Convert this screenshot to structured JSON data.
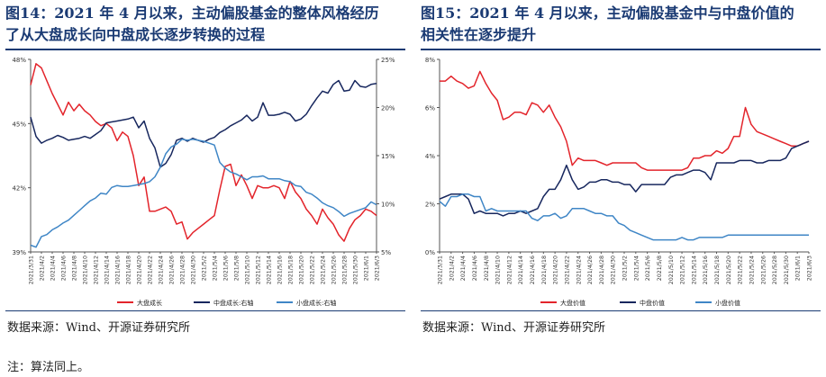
{
  "left": {
    "title_line1": "图14：2021 年 4 月以来，主动偏股基金的整体风格经历",
    "title_line2": "了从大盘成长向中盘成长逐步转换的过程",
    "source": "数据来源：Wind、开源证券研究所"
  },
  "right": {
    "title_line1": "图15：2021 年 4 月以来，主动偏股基金中与中盘价值的",
    "title_line2": "相关性在逐步提升",
    "source": "数据来源：Wind、开源证券研究所"
  },
  "note": "注：算法同上。",
  "colors": {
    "red": "#e3242b",
    "navy": "#17275e",
    "blue": "#3f86c6",
    "title": "#1a3a73"
  },
  "chart_data": [
    {
      "type": "line",
      "x_tick_labels": [
        "2021/3/31",
        "2021/4/2",
        "2021/4/4",
        "2021/4/6",
        "2021/4/8",
        "2021/4/10",
        "2021/4/12",
        "2021/4/14",
        "2021/4/16",
        "2021/4/18",
        "2021/4/20",
        "2021/4/22",
        "2021/4/24",
        "2021/4/26",
        "2021/4/28",
        "2021/4/30",
        "2021/5/2",
        "2021/5/4",
        "2021/5/6",
        "2021/5/8",
        "2021/5/10",
        "2021/5/12",
        "2021/5/14",
        "2021/5/16",
        "2021/5/18",
        "2021/5/20",
        "2021/5/22",
        "2021/5/24",
        "2021/5/26",
        "2021/5/28",
        "2021/5/30",
        "2021/6/1",
        "2021/6/3"
      ],
      "x_range": [
        0,
        64
      ],
      "left_axis": {
        "ticks": [
          "39%",
          "42%",
          "45%",
          "48%"
        ],
        "range": [
          39,
          48
        ]
      },
      "right_axis": {
        "ticks": [
          "5%",
          "10%",
          "15%",
          "20%",
          "25%"
        ],
        "range": [
          5,
          25
        ]
      },
      "legend": [
        "大盘成长",
        "中盘成长:右轴",
        "小盘成长:右轴"
      ],
      "legend_position": "bottom",
      "series": [
        {
          "name": "大盘成长",
          "axis": "left",
          "color": "#e3242b",
          "x": [
            0,
            1,
            2,
            3,
            4,
            5,
            6,
            7,
            8,
            9,
            10,
            11,
            12,
            13,
            14,
            15,
            16,
            17,
            18,
            19,
            20,
            21,
            22,
            23,
            24,
            25,
            26,
            27,
            28,
            29,
            30,
            31,
            32,
            33,
            34,
            35,
            36,
            37,
            38,
            39,
            40,
            41,
            42,
            43,
            44,
            45,
            46,
            47,
            48,
            49,
            50,
            51,
            52,
            53,
            54,
            55,
            56,
            57,
            58,
            59,
            60,
            61,
            62,
            63,
            64
          ],
          "y": [
            46.8,
            47.8,
            47.6,
            47.0,
            46.4,
            45.9,
            45.4,
            46.0,
            45.6,
            45.9,
            45.6,
            45.4,
            45.1,
            44.9,
            45.0,
            44.8,
            44.2,
            44.6,
            44.4,
            43.5,
            42.1,
            42.5,
            40.9,
            40.9,
            41.0,
            41.1,
            40.9,
            40.3,
            40.4,
            39.6,
            39.9,
            40.1,
            40.3,
            40.5,
            40.7,
            41.9,
            43.0,
            43.1,
            42.1,
            42.6,
            42.1,
            41.5,
            42.1,
            42.0,
            42.0,
            42.1,
            42.0,
            41.5,
            42.3,
            41.8,
            41.5,
            41.0,
            40.7,
            40.3,
            41.0,
            40.6,
            40.3,
            39.8,
            39.5,
            40.1,
            40.5,
            40.7,
            41.0,
            40.9,
            40.7
          ]
        },
        {
          "name": "中盘成长:右轴",
          "axis": "right",
          "color": "#17275e",
          "x": [
            0,
            1,
            2,
            3,
            4,
            5,
            6,
            7,
            8,
            9,
            10,
            11,
            12,
            13,
            14,
            15,
            16,
            17,
            18,
            19,
            20,
            21,
            22,
            23,
            24,
            25,
            26,
            27,
            28,
            29,
            30,
            31,
            32,
            33,
            34,
            35,
            36,
            37,
            38,
            39,
            40,
            41,
            42,
            43,
            44,
            45,
            46,
            47,
            48,
            49,
            50,
            51,
            52,
            53,
            54,
            55,
            56,
            57,
            58,
            59,
            60,
            61,
            62,
            63,
            64
          ],
          "y": [
            19.0,
            17.0,
            16.3,
            16.6,
            16.8,
            17.1,
            16.9,
            16.6,
            16.7,
            16.8,
            17.0,
            16.8,
            17.2,
            17.6,
            18.4,
            18.5,
            18.6,
            18.7,
            18.8,
            19.0,
            17.9,
            18.6,
            16.8,
            15.8,
            13.8,
            14.2,
            15.1,
            16.6,
            16.8,
            16.5,
            16.8,
            16.6,
            16.4,
            16.7,
            16.9,
            17.4,
            17.7,
            18.1,
            18.4,
            18.7,
            19.2,
            18.6,
            19.0,
            20.5,
            19.2,
            19.2,
            19.3,
            19.5,
            19.3,
            18.6,
            18.8,
            19.3,
            20.2,
            21.0,
            21.7,
            21.5,
            22.4,
            22.8,
            21.7,
            21.8,
            22.8,
            22.2,
            22.1,
            22.4,
            22.5
          ]
        },
        {
          "name": "小盘成长:右轴",
          "axis": "right",
          "color": "#3f86c6",
          "x": [
            0,
            1,
            2,
            3,
            4,
            5,
            6,
            7,
            8,
            9,
            10,
            11,
            12,
            13,
            14,
            15,
            16,
            17,
            18,
            19,
            20,
            21,
            22,
            23,
            24,
            25,
            26,
            27,
            28,
            29,
            30,
            31,
            32,
            33,
            34,
            35,
            36,
            37,
            38,
            39,
            40,
            41,
            42,
            43,
            44,
            45,
            46,
            47,
            48,
            49,
            50,
            51,
            52,
            53,
            54,
            55,
            56,
            57,
            58,
            59,
            60,
            61,
            62,
            63,
            64
          ],
          "y": [
            5.7,
            5.5,
            6.6,
            6.8,
            7.3,
            7.6,
            8.0,
            8.3,
            8.8,
            9.3,
            9.8,
            10.3,
            10.6,
            11.1,
            11.0,
            11.7,
            11.9,
            11.8,
            11.8,
            11.9,
            12.0,
            12.1,
            12.3,
            12.8,
            13.8,
            15.2,
            15.9,
            16.2,
            16.7,
            16.6,
            16.7,
            16.6,
            16.5,
            16.3,
            16.1,
            14.3,
            13.7,
            13.3,
            13.1,
            12.8,
            12.5,
            12.8,
            12.8,
            12.9,
            12.6,
            12.6,
            12.6,
            12.4,
            12.3,
            11.9,
            11.8,
            11.2,
            11.0,
            10.6,
            10.1,
            9.8,
            9.6,
            9.2,
            8.7,
            9.0,
            9.2,
            9.4,
            9.6,
            10.2,
            9.9
          ]
        }
      ]
    },
    {
      "type": "line",
      "x_tick_labels": [
        "2021/3/31",
        "2021/4/2",
        "2021/4/4",
        "2021/4/6",
        "2021/4/8",
        "2021/4/10",
        "2021/4/12",
        "2021/4/14",
        "2021/4/16",
        "2021/4/18",
        "2021/4/20",
        "2021/4/22",
        "2021/4/24",
        "2021/4/26",
        "2021/4/28",
        "2021/4/30",
        "2021/5/2",
        "2021/5/4",
        "2021/5/6",
        "2021/5/8",
        "2021/5/10",
        "2021/5/12",
        "2021/5/14",
        "2021/5/16",
        "2021/5/18",
        "2021/5/20",
        "2021/5/22",
        "2021/5/24",
        "2021/5/26",
        "2021/5/28",
        "2021/5/30",
        "2021/6/1",
        "2021/6/3"
      ],
      "x_range": [
        0,
        64
      ],
      "y_axis": {
        "ticks": [
          "0%",
          "2%",
          "4%",
          "6%",
          "8%"
        ],
        "range": [
          0,
          8
        ]
      },
      "legend": [
        "大盘价值",
        "中盘价值",
        "小盘价值"
      ],
      "legend_position": "bottom",
      "series": [
        {
          "name": "大盘价值",
          "color": "#e3242b",
          "x": [
            0,
            1,
            2,
            3,
            4,
            5,
            6,
            7,
            8,
            9,
            10,
            11,
            12,
            13,
            14,
            15,
            16,
            17,
            18,
            19,
            20,
            21,
            22,
            23,
            24,
            25,
            26,
            27,
            28,
            29,
            30,
            31,
            32,
            33,
            34,
            35,
            36,
            37,
            38,
            39,
            40,
            41,
            42,
            43,
            44,
            45,
            46,
            47,
            48,
            49,
            50,
            51,
            52,
            53,
            54,
            55,
            56,
            57,
            58,
            59,
            60,
            61,
            62,
            63,
            64
          ],
          "y": [
            7.1,
            7.1,
            7.3,
            7.1,
            7.0,
            6.8,
            6.9,
            7.5,
            7.0,
            6.6,
            6.3,
            5.5,
            5.6,
            5.8,
            5.8,
            5.7,
            6.2,
            6.1,
            5.8,
            6.1,
            5.6,
            5.2,
            4.6,
            3.6,
            3.9,
            3.8,
            3.8,
            3.8,
            3.7,
            3.6,
            3.7,
            3.7,
            3.7,
            3.7,
            3.7,
            3.5,
            3.4,
            3.4,
            3.4,
            3.4,
            3.4,
            3.4,
            3.4,
            3.5,
            3.9,
            3.9,
            4.0,
            4.0,
            4.2,
            4.1,
            4.3,
            4.8,
            4.8,
            6.0,
            5.3,
            5.0,
            4.9,
            4.8,
            4.7,
            4.6,
            4.5,
            4.4,
            4.4,
            4.5,
            4.6
          ]
        },
        {
          "name": "中盘价值",
          "color": "#17275e",
          "x": [
            0,
            1,
            2,
            3,
            4,
            5,
            6,
            7,
            8,
            9,
            10,
            11,
            12,
            13,
            14,
            15,
            16,
            17,
            18,
            19,
            20,
            21,
            22,
            23,
            24,
            25,
            26,
            27,
            28,
            29,
            30,
            31,
            32,
            33,
            34,
            35,
            36,
            37,
            38,
            39,
            40,
            41,
            42,
            43,
            44,
            45,
            46,
            47,
            48,
            49,
            50,
            51,
            52,
            53,
            54,
            55,
            56,
            57,
            58,
            59,
            60,
            61,
            62,
            63,
            64
          ],
          "y": [
            2.2,
            2.3,
            2.4,
            2.4,
            2.4,
            2.2,
            1.6,
            1.7,
            1.6,
            1.6,
            1.6,
            1.5,
            1.6,
            1.6,
            1.7,
            1.6,
            1.7,
            1.8,
            2.3,
            2.6,
            2.6,
            3.0,
            3.6,
            3.0,
            2.6,
            2.7,
            2.9,
            2.9,
            3.0,
            3.0,
            2.9,
            2.9,
            2.8,
            2.8,
            2.5,
            2.8,
            2.8,
            2.8,
            2.8,
            2.8,
            3.1,
            3.2,
            3.2,
            3.3,
            3.4,
            3.4,
            3.3,
            3.0,
            3.7,
            3.7,
            3.7,
            3.7,
            3.8,
            3.8,
            3.8,
            3.7,
            3.7,
            3.8,
            3.8,
            3.8,
            3.9,
            4.3,
            4.4,
            4.5,
            4.6
          ]
        },
        {
          "name": "小盘价值",
          "color": "#3f86c6",
          "x": [
            0,
            1,
            2,
            3,
            4,
            5,
            6,
            7,
            8,
            9,
            10,
            11,
            12,
            13,
            14,
            15,
            16,
            17,
            18,
            19,
            20,
            21,
            22,
            23,
            24,
            25,
            26,
            27,
            28,
            29,
            30,
            31,
            32,
            33,
            34,
            35,
            36,
            37,
            38,
            39,
            40,
            41,
            42,
            43,
            44,
            45,
            46,
            47,
            48,
            49,
            50,
            51,
            52,
            53,
            54,
            55,
            56,
            57,
            58,
            59,
            60,
            61,
            62,
            63,
            64
          ],
          "y": [
            2.1,
            1.9,
            2.3,
            2.3,
            2.4,
            2.4,
            2.3,
            2.3,
            1.7,
            1.8,
            1.7,
            1.7,
            1.7,
            1.7,
            1.7,
            1.7,
            1.4,
            1.3,
            1.5,
            1.5,
            1.6,
            1.4,
            1.5,
            1.8,
            1.8,
            1.8,
            1.7,
            1.6,
            1.6,
            1.5,
            1.5,
            1.2,
            1.1,
            0.9,
            0.8,
            0.7,
            0.6,
            0.5,
            0.5,
            0.5,
            0.5,
            0.5,
            0.6,
            0.5,
            0.5,
            0.6,
            0.6,
            0.6,
            0.6,
            0.6,
            0.7,
            0.7,
            0.7,
            0.7,
            0.7,
            0.7,
            0.7,
            0.7,
            0.7,
            0.7,
            0.7,
            0.7,
            0.7,
            0.7,
            0.7
          ]
        }
      ]
    }
  ]
}
